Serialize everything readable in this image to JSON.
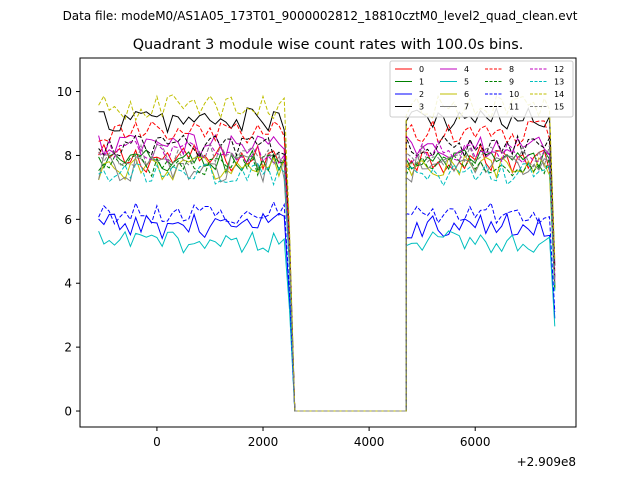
{
  "chart_data": {
    "type": "line",
    "suptitle": "Data file: modeM0/AS1A05_173T01_9000002812_18810cztM0_level2_quad_clean.evt",
    "title": "Quadrant 3 module wise count rates with 100.0s bins.",
    "xlabel": "",
    "ylabel": "",
    "offset_label": "+2.909e8",
    "xlim": [
      -1450,
      7900
    ],
    "ylim": [
      -0.5,
      11.05
    ],
    "xticks": [
      0,
      2000,
      4000,
      6000
    ],
    "xtick_labels": [
      "0",
      "2000",
      "4000",
      "6000"
    ],
    "yticks": [
      0,
      2,
      4,
      6,
      8,
      10
    ],
    "ytick_labels": [
      "0",
      "2",
      "4",
      "6",
      "8",
      "10"
    ],
    "legend_position": "top-right",
    "bin_width": 100,
    "segments": [
      {
        "start": -1100,
        "end": 2500
      },
      {
        "start": 4700,
        "end": 7500
      }
    ],
    "gap": {
      "start": 2600,
      "end": 4700,
      "value": 0
    },
    "series": [
      {
        "name": "0",
        "color": "#ff0000",
        "dash": "solid",
        "mean": 7.9,
        "amp": 0.45
      },
      {
        "name": "1",
        "color": "#008000",
        "dash": "solid",
        "mean": 7.8,
        "amp": 0.4
      },
      {
        "name": "2",
        "color": "#0000ff",
        "dash": "solid",
        "mean": 5.8,
        "amp": 0.4
      },
      {
        "name": "3",
        "color": "#000000",
        "dash": "solid",
        "mean": 9.1,
        "amp": 0.4
      },
      {
        "name": "4",
        "color": "#bf00bf",
        "dash": "solid",
        "mean": 8.3,
        "amp": 0.4
      },
      {
        "name": "5",
        "color": "#00bfbf",
        "dash": "solid",
        "mean": 5.3,
        "amp": 0.35
      },
      {
        "name": "6",
        "color": "#bfbf00",
        "dash": "solid",
        "mean": 7.6,
        "amp": 0.4
      },
      {
        "name": "7",
        "color": "#808080",
        "dash": "solid",
        "mean": 7.6,
        "amp": 0.45
      },
      {
        "name": "8",
        "color": "#ff0000",
        "dash": "dashed",
        "mean": 8.7,
        "amp": 0.4
      },
      {
        "name": "9",
        "color": "#008000",
        "dash": "dashed",
        "mean": 7.7,
        "amp": 0.35
      },
      {
        "name": "10",
        "color": "#0000ff",
        "dash": "dashed",
        "mean": 6.2,
        "amp": 0.35
      },
      {
        "name": "11",
        "color": "#000000",
        "dash": "dashed",
        "mean": 8.3,
        "amp": 0.35
      },
      {
        "name": "12",
        "color": "#bf00bf",
        "dash": "dashed",
        "mean": 8.1,
        "amp": 0.35
      },
      {
        "name": "13",
        "color": "#00bfbf",
        "dash": "dashed",
        "mean": 7.4,
        "amp": 0.35
      },
      {
        "name": "14",
        "color": "#bfbf00",
        "dash": "dashed",
        "mean": 9.5,
        "amp": 0.4
      },
      {
        "name": "15",
        "color": "#808080",
        "dash": "dashed",
        "mean": 8.0,
        "amp": 0.35
      }
    ]
  }
}
